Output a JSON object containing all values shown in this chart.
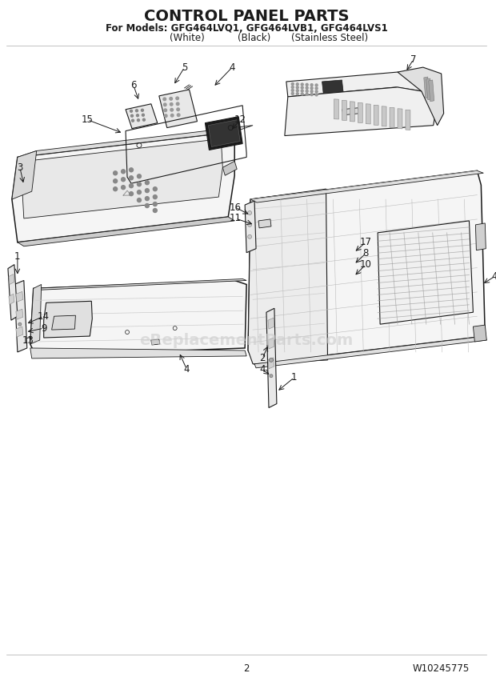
{
  "title_line1": "CONTROL PANEL PARTS",
  "title_line2": "For Models: GFG464LVQ1, GFG464LVB1, GFG464LVS1",
  "title_line3_a": "(White)",
  "title_line3_b": "(Black)",
  "title_line3_c": "(Stainless Steel)",
  "page_number": "2",
  "doc_number": "W10245775",
  "bg_color": "#ffffff",
  "fg_color": "#1a1a1a",
  "watermark_text": "eReplacementParts.com",
  "lw_main": 1.1,
  "lw_thin": 0.6,
  "lw_med": 0.8,
  "label_fs": 8.5,
  "footer_fs": 8.5,
  "title_fs1": 14,
  "title_fs2": 8.5
}
